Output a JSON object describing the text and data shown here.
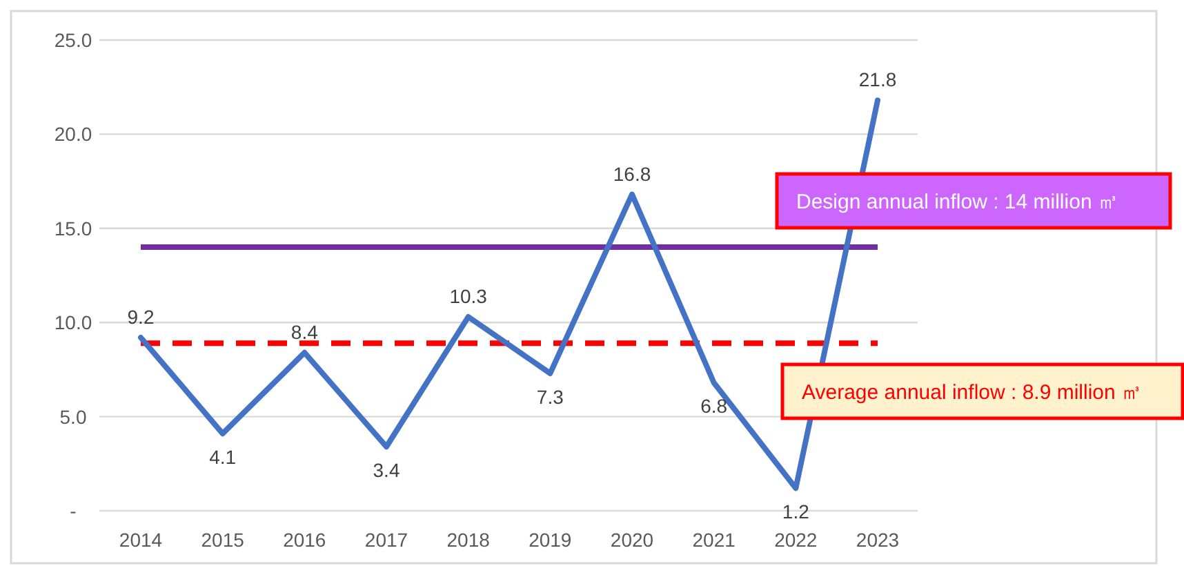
{
  "chart_data": {
    "type": "line",
    "categories": [
      "2014",
      "2015",
      "2016",
      "2017",
      "2018",
      "2019",
      "2020",
      "2021",
      "2022",
      "2023"
    ],
    "series": [
      {
        "color": "#4472c4",
        "values": [
          9.2,
          4.1,
          8.4,
          3.4,
          10.3,
          7.3,
          16.8,
          6.8,
          1.2,
          21.8
        ]
      }
    ],
    "ylim": [
      0,
      25
    ],
    "yticks": [
      {
        "value": 0,
        "label": "-"
      },
      {
        "value": 5,
        "label": "5.0"
      },
      {
        "value": 10,
        "label": "10.0"
      },
      {
        "value": 15,
        "label": "15.0"
      },
      {
        "value": 20,
        "label": "20.0"
      },
      {
        "value": 25,
        "label": "25.0"
      }
    ],
    "grid": "y",
    "data_labels": true,
    "marker": "none",
    "line_style": "solid",
    "ref_lines": [
      {
        "axis": "y",
        "value": 14,
        "label": "Design annual inflow : 14 million ㎥",
        "color": "#7030a0",
        "line_style": "solid"
      },
      {
        "axis": "y",
        "value": 8.9,
        "label": "Average annual inflow : 8.9 million ㎥",
        "color": "#ff0000",
        "line_style": "dashed"
      }
    ]
  }
}
